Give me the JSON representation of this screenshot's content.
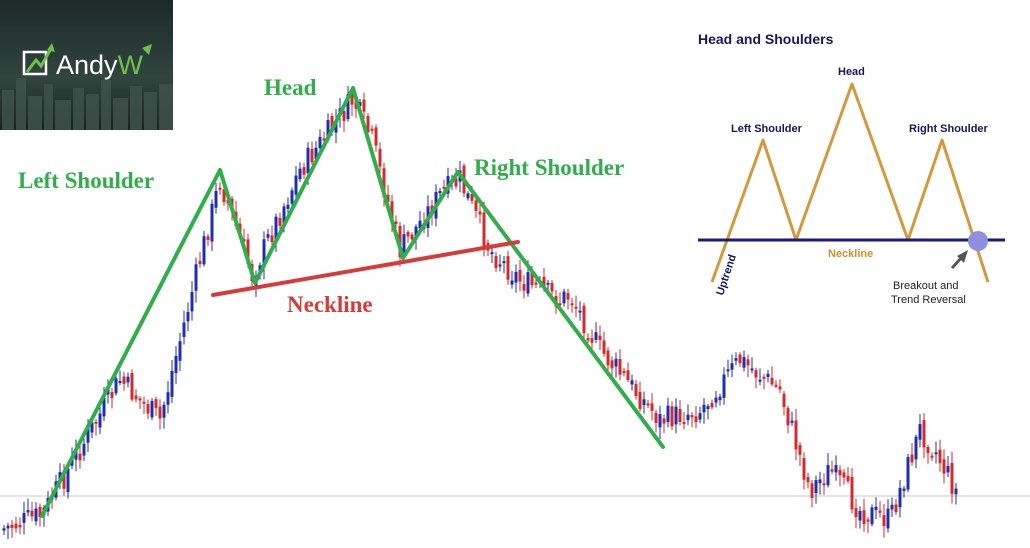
{
  "logo": {
    "text_main": "Andy",
    "text_accent": "W"
  },
  "main_chart": {
    "labels": {
      "left_shoulder": "Left Shoulder",
      "head": "Head",
      "right_shoulder": "Right Shoulder",
      "neckline": "Neckline"
    },
    "colors": {
      "trend_line": "#2fae4a",
      "neckline": "#d63a3a",
      "bull_candle": "#1f2fb0",
      "bear_candle": "#d42a2a",
      "baseline": "#c8c8c8"
    }
  },
  "inset": {
    "title": "Head and Shoulders",
    "left_shoulder": "Left Shoulder",
    "head": "Head",
    "right_shoulder": "Right Shoulder",
    "neckline": "Neckline",
    "uptrend": "Uptrend",
    "breakout_line1": "Breakout and",
    "breakout_line2": "Trend Reversal",
    "colors": {
      "pattern_line": "#d39a3c",
      "neckline": "#1a1a7a",
      "breakout_marker": "#8f8fe0",
      "arrow": "#555555"
    }
  }
}
